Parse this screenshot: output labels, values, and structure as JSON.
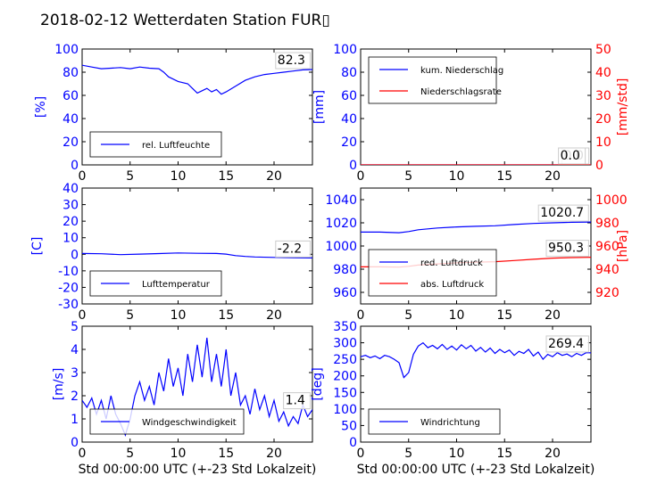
{
  "title": "2018-02-12 Wetterdaten Station FUR▯",
  "colors": {
    "blue": "#0000ff",
    "red": "#ff0000",
    "lightblue": "#8080ff",
    "black": "#000000"
  },
  "chart_data": [
    {
      "id": "humidity",
      "type": "line",
      "ylabel": "[%]",
      "xlabel": "",
      "xlim": [
        0,
        24
      ],
      "ylim": [
        0,
        100
      ],
      "xticks": [
        0,
        5,
        10,
        15,
        20
      ],
      "yticks": [
        0,
        20,
        40,
        60,
        80,
        100
      ],
      "legend_position": "lower-left",
      "last_value_label": "82.3",
      "series": [
        {
          "name": "rel. Luftfeuchte",
          "color": "#0000ff",
          "x": [
            0,
            1,
            2,
            3,
            4,
            5,
            6,
            7,
            8,
            8.5,
            9,
            10,
            11,
            11.5,
            12,
            12.5,
            13,
            13.5,
            14,
            14.5,
            15,
            16,
            17,
            18,
            19,
            20,
            21,
            22,
            23,
            24
          ],
          "y": [
            86,
            84.5,
            83,
            83.5,
            84,
            83,
            84.5,
            83.5,
            83,
            80,
            76,
            72,
            70,
            66,
            62,
            64,
            66,
            63,
            65,
            61,
            63,
            68,
            73,
            76,
            78,
            79,
            80,
            81,
            82,
            82.3
          ]
        }
      ]
    },
    {
      "id": "precipitation",
      "type": "line",
      "ylabel": "[mm]",
      "y2label": "[mm/std]",
      "xlabel": "",
      "xlim": [
        0,
        24
      ],
      "ylim": [
        0,
        100
      ],
      "y2lim": [
        0,
        50
      ],
      "xticks": [
        0,
        5,
        10,
        15,
        20
      ],
      "yticks": [
        0,
        20,
        40,
        60,
        80,
        100
      ],
      "y2ticks": [
        0,
        10,
        20,
        30,
        40,
        50
      ],
      "legend_position": "upper-left",
      "last_value_labels": [
        "0.0",
        "0.0"
      ],
      "series": [
        {
          "name": "kum. Niederschlag",
          "color": "#0000ff",
          "axis": "left",
          "x": [
            0,
            24
          ],
          "y": [
            0,
            0
          ]
        },
        {
          "name": "Niederschlagsrate",
          "color": "#ff0000",
          "axis": "right",
          "x": [
            0,
            24
          ],
          "y": [
            0,
            0
          ]
        }
      ]
    },
    {
      "id": "temperature",
      "type": "line",
      "ylabel": "[C]",
      "xlabel": "",
      "xlim": [
        0,
        24
      ],
      "ylim": [
        -30,
        40
      ],
      "xticks": [
        0,
        5,
        10,
        15,
        20
      ],
      "yticks": [
        -30,
        -20,
        -10,
        0,
        10,
        20,
        30,
        40
      ],
      "legend_position": "lower-left",
      "last_value_label": "-2.2",
      "series": [
        {
          "name": "Lufttemperatur",
          "color": "#0000ff",
          "x": [
            0,
            2,
            4,
            6,
            8,
            10,
            12,
            14,
            15,
            16,
            17,
            18,
            20,
            22,
            24
          ],
          "y": [
            0.5,
            0.3,
            -0.2,
            0.1,
            0.4,
            0.8,
            0.6,
            0.5,
            0.1,
            -0.8,
            -1.3,
            -1.6,
            -1.9,
            -2.1,
            -2.2
          ]
        }
      ]
    },
    {
      "id": "pressure",
      "type": "line",
      "ylabel": "",
      "y2label": "[hPa]",
      "xlabel": "",
      "xlim": [
        0,
        24
      ],
      "ylim": [
        950,
        1050
      ],
      "y2lim": [
        910,
        1010
      ],
      "xticks": [
        0,
        5,
        10,
        15,
        20
      ],
      "yticks": [
        960,
        980,
        1000,
        1020,
        1040
      ],
      "y2ticks": [
        920,
        940,
        960,
        980,
        1000
      ],
      "legend_position": "lower-left",
      "last_value_labels": [
        "1020.7",
        "950.3"
      ],
      "series": [
        {
          "name": "red. Luftdruck",
          "color": "#0000ff",
          "axis": "left",
          "x": [
            0,
            2,
            4,
            5,
            6,
            8,
            10,
            12,
            14,
            16,
            18,
            20,
            22,
            24
          ],
          "y": [
            1012,
            1012,
            1011.5,
            1012.5,
            1014,
            1015.5,
            1016.5,
            1017,
            1017.5,
            1018.5,
            1019.5,
            1020,
            1020.5,
            1020.7
          ]
        },
        {
          "name": "abs. Luftdruck",
          "color": "#ff0000",
          "axis": "right",
          "x": [
            0,
            2,
            4,
            5,
            6,
            8,
            10,
            12,
            14,
            16,
            18,
            20,
            22,
            24
          ],
          "y": [
            942,
            942,
            941.8,
            942.5,
            943.5,
            944.5,
            945.5,
            946,
            946.5,
            947.5,
            948.5,
            949.5,
            950,
            950.3
          ]
        }
      ]
    },
    {
      "id": "windspeed",
      "type": "line",
      "ylabel": "[m/s]",
      "xlabel": "Std 00:00:00 UTC (+-23 Std Lokalzeit)",
      "xlim": [
        0,
        24
      ],
      "ylim": [
        0,
        5
      ],
      "xticks": [
        0,
        5,
        10,
        15,
        20
      ],
      "yticks": [
        0,
        1,
        2,
        3,
        4,
        5
      ],
      "legend_position": "lower-left",
      "last_value_label": "1.4",
      "series": [
        {
          "name": "Windgeschwindigkeit",
          "color": "#0000ff",
          "x": [
            0,
            0.5,
            1,
            1.5,
            2,
            2.5,
            3,
            3.5,
            4,
            4.5,
            5,
            5.5,
            6,
            6.5,
            7,
            7.5,
            8,
            8.5,
            9,
            9.5,
            10,
            10.5,
            11,
            11.5,
            12,
            12.5,
            13,
            13.5,
            14,
            14.5,
            15,
            15.5,
            16,
            16.5,
            17,
            17.5,
            18,
            18.5,
            19,
            19.5,
            20,
            20.5,
            21,
            21.5,
            22,
            22.5,
            23,
            23.5,
            24
          ],
          "y": [
            1.8,
            1.5,
            1.9,
            1.2,
            1.8,
            1.0,
            2.0,
            1.2,
            0.8,
            0.3,
            1.0,
            2.0,
            2.6,
            1.8,
            2.4,
            1.6,
            3.0,
            2.2,
            3.6,
            2.4,
            3.2,
            2.0,
            3.8,
            2.6,
            4.2,
            2.8,
            4.5,
            2.6,
            3.8,
            2.4,
            4.0,
            2.0,
            3.0,
            1.6,
            2.0,
            1.2,
            2.3,
            1.4,
            2.0,
            1.1,
            1.8,
            0.9,
            1.3,
            0.7,
            1.1,
            0.8,
            1.6,
            1.1,
            1.4
          ]
        }
      ]
    },
    {
      "id": "winddirection",
      "type": "line",
      "ylabel": "[deg]",
      "xlabel": "Std 00:00:00 UTC (+-23 Std Lokalzeit)",
      "xlim": [
        0,
        24
      ],
      "ylim": [
        0,
        350
      ],
      "xticks": [
        0,
        5,
        10,
        15,
        20
      ],
      "yticks": [
        0,
        50,
        100,
        150,
        200,
        250,
        300,
        350
      ],
      "legend_position": "lower-left",
      "last_value_label": "269.4",
      "series": [
        {
          "name": "Windrichtung",
          "color": "#0000ff",
          "x": [
            0,
            0.5,
            1,
            1.5,
            2,
            2.5,
            3,
            3.5,
            4,
            4.5,
            5,
            5.5,
            6,
            6.5,
            7,
            7.5,
            8,
            8.5,
            9,
            9.5,
            10,
            10.5,
            11,
            11.5,
            12,
            12.5,
            13,
            13.5,
            14,
            14.5,
            15,
            15.5,
            16,
            16.5,
            17,
            17.5,
            18,
            18.5,
            19,
            19.5,
            20,
            20.5,
            21,
            21.5,
            22,
            22.5,
            23,
            23.5,
            24
          ],
          "y": [
            258,
            262,
            255,
            260,
            252,
            262,
            258,
            250,
            240,
            195,
            210,
            265,
            290,
            300,
            285,
            292,
            282,
            295,
            280,
            290,
            278,
            294,
            282,
            292,
            275,
            286,
            272,
            284,
            268,
            280,
            270,
            278,
            262,
            274,
            268,
            280,
            260,
            272,
            250,
            265,
            258,
            270,
            262,
            266,
            258,
            268,
            262,
            270,
            269.4
          ]
        }
      ]
    }
  ]
}
